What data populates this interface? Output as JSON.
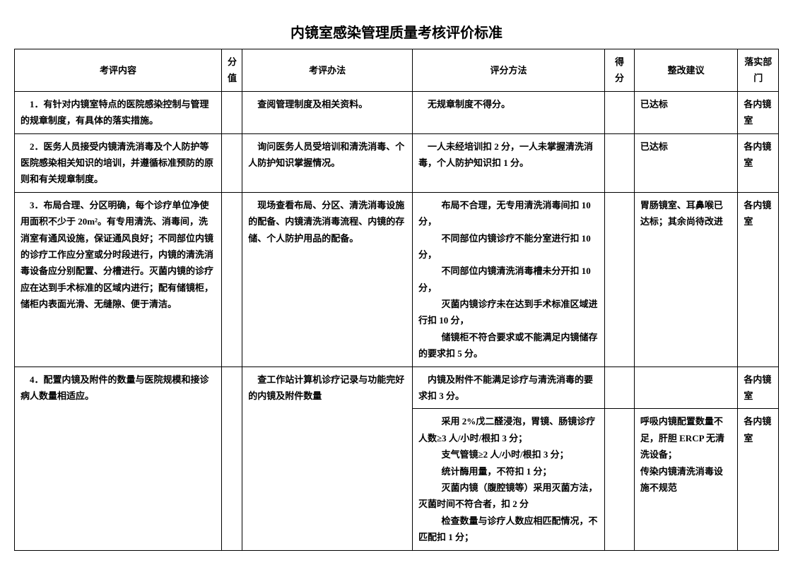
{
  "title": "内镜室感染管理质量考核评价标准",
  "headers": {
    "content": "考评内容",
    "score_value": "分值",
    "method": "考评办法",
    "scoring": "评分方法",
    "score": "得分",
    "suggestion": "整改建议",
    "dept": "落实部门"
  },
  "rows": {
    "r1": {
      "content": "　1．有针对内镜室特点的医院感染控制与管理的规章制度，有具体的落实措施。",
      "method": "　查阅管理制度及相关资料。",
      "scoring": "　无规章制度不得分。",
      "suggestion": "已达标",
      "dept": "各内镜室"
    },
    "r2": {
      "content": "　2．医务人员接受内镜清洗消毒及个人防护等医院感染相关知识的培训，并遵循标准预防的原则和有关规章制度。",
      "method": "　询问医务人员受培训和清洗消毒、个人防护知识掌握情况。",
      "scoring": "　一人未经培训扣 2 分，一人未掌握清洗消毒，个人防护知识扣 1 分。",
      "suggestion": "已达标",
      "dept": "各内镜室"
    },
    "r3": {
      "content": "　3．布局合理、分区明确，每个诊疗单位净使用面积不少于 20m²。有专用清洗、消毒间，洗消室有通风设施，保证通风良好；不同部位内镜的诊疗工作应分室或分时段进行，内镜的清洗消毒设备应分别配置、分槽进行。灭菌内镜的诊疗应在达到手术标准的区域内进行；配有储镜柜，储柜内表面光滑、无缝隙、便于清洁。",
      "method": "　现场查看布局、分区、清洗消毒设施的配备、内镜清洗消毒流程、内镜的存储、个人防护用品的配备。",
      "scoring_l1": "　布局不合理，无专用清洗消毒间扣 10 分，",
      "scoring_l2": "　不同部位内镜诊疗不能分室进行扣 10 分，",
      "scoring_l3": "　不同部位内镜清洗消毒槽未分开扣 10 分，",
      "scoring_l4": "　灭菌内镜诊疗未在达到手术标准区域进行扣 10 分，",
      "scoring_l5": "　储镜柜不符合要求或不能满足内镜储存的要求扣 5 分。",
      "suggestion": "胃肠镜室、耳鼻喉已达标；其余尚待改进",
      "dept": "各内镜室"
    },
    "r4": {
      "content": "　4．配置内镜及附件的数量与医院规模和接诊病人数量相适应。",
      "method": "　查工作站计算机诊疗记录与功能完好的内镜及附件数量",
      "scoring_a": "　内镜及附件不能满足诊疗与清洗消毒的要求扣 3 分。",
      "dept_a": "各内镜室",
      "scoring_b1": "　采用 2%戊二醛浸泡，胃镜、肠镜诊疗人数≥3 人/小时/根扣 3 分；",
      "scoring_b2": "　支气管镜≥2 人/小时/根扣 3 分；",
      "scoring_b3": "　统计酶用量，不符扣 1 分；",
      "scoring_b4": "　灭菌内镜（腹腔镜等）采用灭菌方法，灭菌时间不符合者，扣 2 分",
      "scoring_b5": "　检查数量与诊疗人数应相匹配情况，不匹配扣 1 分；",
      "suggestion_b": "呼吸内镜配置数量不足，肝胆 ERCP 无清洗设备；\n传染内镜清洗消毒设施不规范",
      "dept_b": "各内镜室"
    }
  }
}
